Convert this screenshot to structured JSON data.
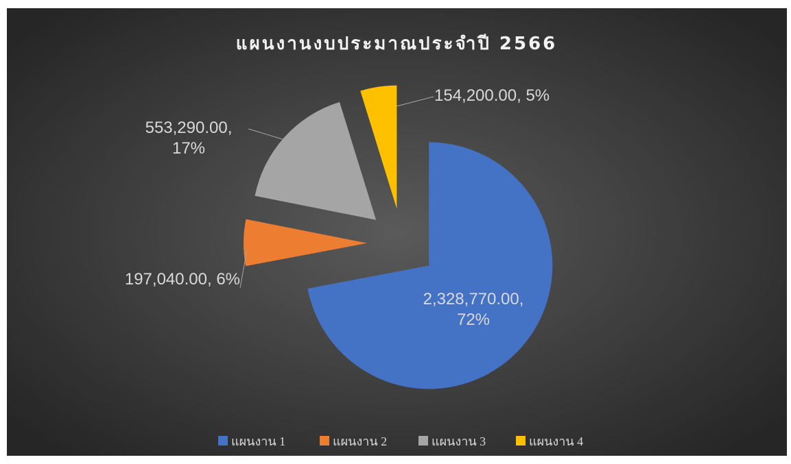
{
  "chart_data": {
    "type": "pie",
    "title": "แผนงานงบประมาณประจำปี 2566",
    "categories": [
      "แผนงาน 1",
      "แผนงาน 2",
      "แผนงาน 3",
      "แผนงาน 4"
    ],
    "values": [
      2328770,
      197040,
      553290,
      154200
    ],
    "value_labels": [
      "2,328,770.00, 72%",
      "197,040.00, 6%",
      "553,290.00, 17%",
      "154,200.00, 5%"
    ],
    "colors": [
      "#4472c4",
      "#ed7d31",
      "#a5a5a5",
      "#ffc000"
    ],
    "legend": "bottom"
  }
}
